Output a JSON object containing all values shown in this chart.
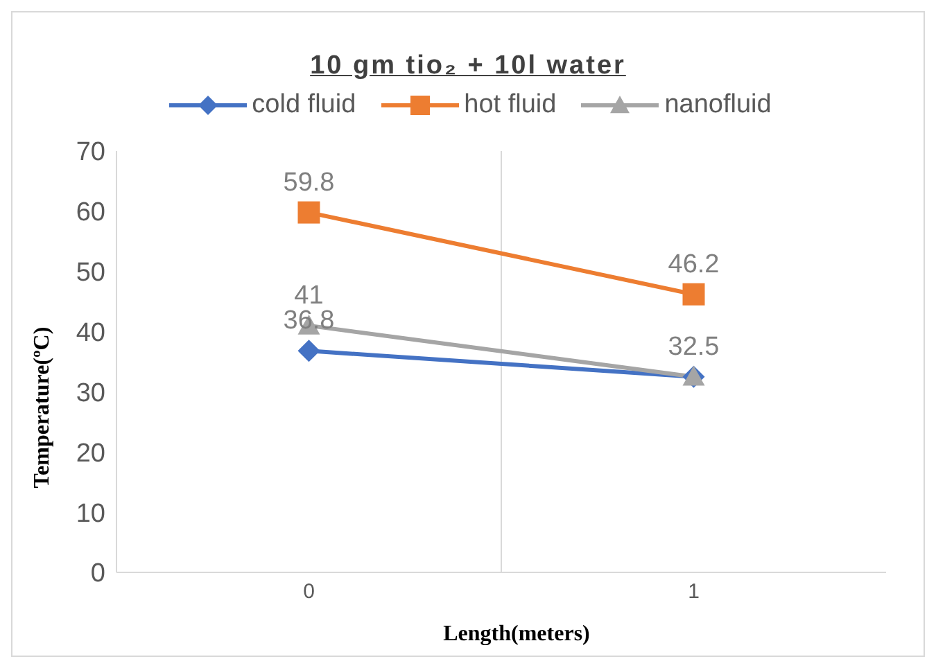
{
  "chart_data": {
    "type": "line",
    "title": "10 gm tio₂ + 10l water",
    "xlabel": "Length(meters)",
    "ylabel": "Temperature(ºC)",
    "categories": [
      "0",
      "1"
    ],
    "series": [
      {
        "name": "cold fluid",
        "color": "#4472c4",
        "marker": "diamond",
        "values": [
          36.8,
          32.5
        ],
        "value_labels": [
          "36.8",
          "32.5"
        ]
      },
      {
        "name": "hot fluid",
        "color": "#ed7d31",
        "marker": "square",
        "values": [
          59.8,
          46.2
        ],
        "value_labels": [
          "59.8",
          "46.2"
        ]
      },
      {
        "name": "nanofluid",
        "color": "#a5a5a5",
        "marker": "triangle",
        "values": [
          41,
          32.5
        ],
        "value_labels": [
          "41",
          null
        ]
      }
    ],
    "ylim": [
      0,
      70
    ],
    "yticks": [
      0,
      10,
      20,
      30,
      40,
      50,
      60,
      70
    ],
    "grid": "x",
    "legend": "top",
    "line_style": "solid"
  }
}
